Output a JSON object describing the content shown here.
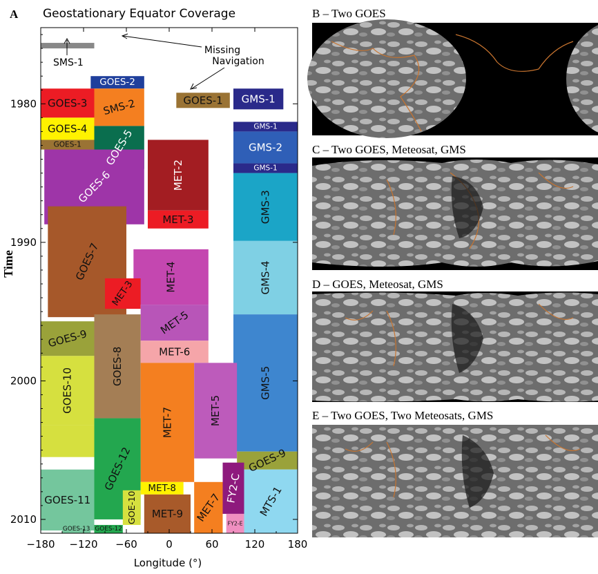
{
  "panel_a": {
    "letter": "A",
    "title": "Geostationary Equator Coverage",
    "ylabel": "Time",
    "xlabel": "Longitude (°)",
    "note_missing": [
      "Missing",
      "Navigation"
    ],
    "sms1_label": "SMS-1"
  },
  "chart_data": {
    "type": "bar",
    "title": "Geostationary Equator Coverage",
    "xlabel": "Longitude (°)",
    "ylabel": "Time",
    "xlim": [
      -180,
      180
    ],
    "ylim": [
      1974.5,
      2011
    ],
    "xticks": [
      -180,
      -120,
      -60,
      0,
      60,
      120,
      180
    ],
    "yticks": [
      1980,
      1990,
      2000,
      2010
    ],
    "grid": false,
    "segments": [
      {
        "name": "SMS-1 (Missing Navigation)",
        "x0": -180,
        "x1": -105,
        "y0": 1975.6,
        "y1": 1976.0,
        "color": "#888888",
        "label": false
      },
      {
        "name": "GOES-2",
        "x0": -110,
        "x1": -35,
        "y0": 1978.0,
        "y1": 1978.9,
        "color": "#1f3f9c",
        "label": true,
        "rot": 0
      },
      {
        "name": "GOES-1",
        "x0": 10,
        "x1": 85,
        "y0": 1979.2,
        "y1": 1980.3,
        "color": "#9a7334",
        "label": true,
        "rot": 0
      },
      {
        "name": "GMS-1",
        "x0": 90,
        "x1": 160,
        "y0": 1978.9,
        "y1": 1980.4,
        "color": "#2a2a8a",
        "label": true,
        "rot": 0
      },
      {
        "name": "GOES-3",
        "x0": -180,
        "x1": -105,
        "y0": 1978.9,
        "y1": 1981.0,
        "color": "#ec1c24",
        "label": true,
        "rot": 0
      },
      {
        "name": "SMS-2",
        "x0": -105,
        "x1": -35,
        "y0": 1978.9,
        "y1": 1981.6,
        "color": "#f47f20",
        "label": true,
        "rot": -15
      },
      {
        "name": "GOES-4",
        "x0": -180,
        "x1": -105,
        "y0": 1981.0,
        "y1": 1982.6,
        "color": "#fff200",
        "label": true,
        "rot": 0
      },
      {
        "name": "GOES-1",
        "x0": -180,
        "x1": -105,
        "y0": 1982.6,
        "y1": 1983.3,
        "color": "#9a7334",
        "label": true,
        "rot": 0
      },
      {
        "name": "GOES-5",
        "x0": -105,
        "x1": -35,
        "y0": 1981.6,
        "y1": 1984.7,
        "color": "#0a6e4e",
        "label": true,
        "rot": -58
      },
      {
        "name": "GMS-1",
        "x0": 90,
        "x1": 180,
        "y0": 1981.3,
        "y1": 1982.0,
        "color": "#2a2a8a",
        "label": true,
        "rot": 0
      },
      {
        "name": "GMS-2",
        "x0": 90,
        "x1": 180,
        "y0": 1982.0,
        "y1": 1984.3,
        "color": "#2f5fb7",
        "label": true,
        "rot": 0
      },
      {
        "name": "GMS-1",
        "x0": 90,
        "x1": 180,
        "y0": 1984.3,
        "y1": 1985.0,
        "color": "#2a2a8a",
        "label": true,
        "rot": 0
      },
      {
        "name": "MET-2",
        "x0": -30,
        "x1": 55,
        "y0": 1982.6,
        "y1": 1987.7,
        "color": "#a31d22",
        "label": true,
        "rot": -90
      },
      {
        "name": "GOES-6",
        "x0": -175,
        "x1": -35,
        "y0": 1983.3,
        "y1": 1988.7,
        "color": "#9e35a8",
        "label": true,
        "rot": -45
      },
      {
        "name": "GMS-3",
        "x0": 90,
        "x1": 180,
        "y0": 1985.0,
        "y1": 1989.9,
        "color": "#1ba5c7",
        "label": true,
        "rot": -90
      },
      {
        "name": "MET-3",
        "x0": -30,
        "x1": 55,
        "y0": 1987.7,
        "y1": 1989.0,
        "color": "#ec1c24",
        "label": true,
        "rot": 0
      },
      {
        "name": "GOES-7",
        "x0": -170,
        "x1": -60,
        "y0": 1987.4,
        "y1": 1995.4,
        "color": "#a6582a",
        "label": true,
        "rot": -65
      },
      {
        "name": "MET-4",
        "x0": -50,
        "x1": 55,
        "y0": 1990.5,
        "y1": 1994.5,
        "color": "#c447b0",
        "label": true,
        "rot": -90
      },
      {
        "name": "MET-3",
        "x0": -90,
        "x1": -40,
        "y0": 1992.6,
        "y1": 1994.8,
        "color": "#ec1c24",
        "label": true,
        "rot": -55
      },
      {
        "name": "GMS-4",
        "x0": 90,
        "x1": 180,
        "y0": 1989.9,
        "y1": 1995.2,
        "color": "#7fd0e4",
        "label": true,
        "rot": -90
      },
      {
        "name": "MET-5",
        "x0": -40,
        "x1": 55,
        "y0": 1994.5,
        "y1": 1997.1,
        "color": "#b855b8",
        "label": true,
        "rot": -35
      },
      {
        "name": "GOES-9",
        "x0": -180,
        "x1": -105,
        "y0": 1995.7,
        "y1": 1998.2,
        "color": "#9aa23a",
        "label": true,
        "rot": -15
      },
      {
        "name": "GOES-8",
        "x0": -105,
        "x1": -40,
        "y0": 1995.2,
        "y1": 2002.7,
        "color": "#a47e55",
        "label": true,
        "rot": -90
      },
      {
        "name": "GMS-5",
        "x0": 90,
        "x1": 180,
        "y0": 1995.2,
        "y1": 2005.1,
        "color": "#3e86cf",
        "label": true,
        "rot": -90
      },
      {
        "name": "MET-6",
        "x0": -40,
        "x1": 55,
        "y0": 1997.1,
        "y1": 1998.7,
        "color": "#f5a5a9",
        "label": true,
        "rot": 0
      },
      {
        "name": "GOES-10",
        "x0": -180,
        "x1": -105,
        "y0": 1998.2,
        "y1": 2003.2,
        "color": "#d6e03f",
        "label": true,
        "rot": -90
      },
      {
        "name": "GOES-10 (ext)",
        "x0": -180,
        "x1": -105,
        "y0": 2003.2,
        "y1": 2005.5,
        "color": "#d6e03f",
        "label": false
      },
      {
        "name": "MET-7",
        "x0": -40,
        "x1": 35,
        "y0": 1998.7,
        "y1": 2007.3,
        "color": "#f47f20",
        "label": true,
        "rot": -90
      },
      {
        "name": "MET-5",
        "x0": 35,
        "x1": 95,
        "y0": 1998.7,
        "y1": 2005.6,
        "color": "#bd5bbb",
        "label": true,
        "rot": -90
      },
      {
        "name": "GOES-12",
        "x0": -105,
        "x1": -40,
        "y0": 2002.7,
        "y1": 2010.0,
        "color": "#23a74f",
        "label": true,
        "rot": -65
      },
      {
        "name": "GOES-9",
        "x0": 95,
        "x1": 180,
        "y0": 2005.1,
        "y1": 2006.4,
        "color": "#9aa23a",
        "label": true,
        "rot": -25
      },
      {
        "name": "GOES-11",
        "x0": -180,
        "x1": -105,
        "y0": 2006.4,
        "y1": 2010.8,
        "color": "#74c69d",
        "label": true,
        "rot": 0
      },
      {
        "name": "FY2-C",
        "x0": 75,
        "x1": 105,
        "y0": 2005.9,
        "y1": 2009.6,
        "color": "#8e1a7d",
        "label": true,
        "rot": -80
      },
      {
        "name": "MET-8",
        "x0": -40,
        "x1": 20,
        "y0": 2007.3,
        "y1": 2008.2,
        "color": "#fff200",
        "label": true,
        "rot": 0
      },
      {
        "name": "MTS-1",
        "x0": 105,
        "x1": 180,
        "y0": 2006.4,
        "y1": 2011.0,
        "color": "#8fd8f0",
        "label": true,
        "rot": -60
      },
      {
        "name": "GOE-10",
        "x0": -65,
        "x1": -40,
        "y0": 2007.9,
        "y1": 2010.4,
        "color": "#d6e03f",
        "label": true,
        "rot": -90
      },
      {
        "name": "MET-9",
        "x0": -35,
        "x1": 30,
        "y0": 2008.2,
        "y1": 2011.0,
        "color": "#a85a2a",
        "label": true,
        "rot": 0
      },
      {
        "name": "MET-7",
        "x0": 35,
        "x1": 75,
        "y0": 2007.3,
        "y1": 2011.0,
        "color": "#f47f20",
        "label": true,
        "rot": -55
      },
      {
        "name": "GOES-13",
        "x0": -150,
        "x1": -110,
        "y0": 2010.4,
        "y1": 2011.0,
        "color": "#74c69d",
        "label": true,
        "rot": 0
      },
      {
        "name": "GOES-12",
        "x0": -105,
        "x1": -65,
        "y0": 2010.4,
        "y1": 2011.0,
        "color": "#23a74f",
        "label": true,
        "rot": 0
      },
      {
        "name": "FY2-E",
        "x0": 80,
        "x1": 105,
        "y0": 2009.6,
        "y1": 2011.0,
        "color": "#f08fc0",
        "label": true,
        "rot": 0
      }
    ]
  },
  "panels": [
    {
      "key": "B",
      "title": "B – Two GOES"
    },
    {
      "key": "C",
      "title": "C – Two GOES, Meteosat, GMS"
    },
    {
      "key": "D",
      "title": "D – GOES, Meteosat, GMS"
    },
    {
      "key": "E",
      "title": "E – Two GOES, Two Meteosats, GMS"
    }
  ]
}
